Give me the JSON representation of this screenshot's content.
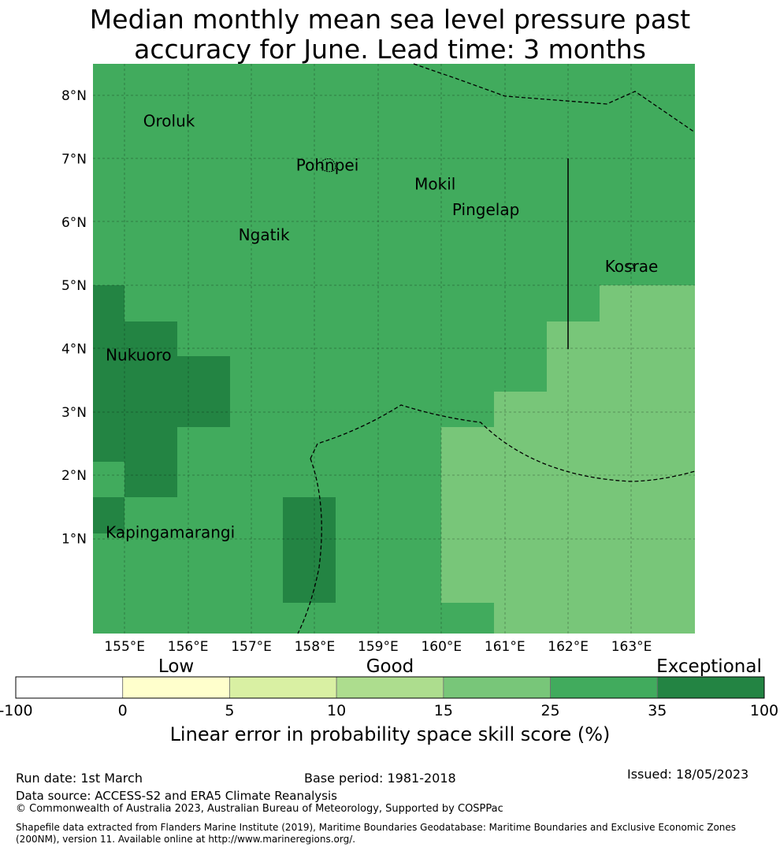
{
  "title_line1": "Median monthly mean sea level pressure past",
  "title_line2": "accuracy for June. Lead time: 3 months",
  "map": {
    "lon_range": [
      154.5,
      164.0
    ],
    "lat_range": [
      -0.5,
      8.5
    ],
    "lon_ticks": [
      "155°E",
      "156°E",
      "157°E",
      "158°E",
      "159°E",
      "160°E",
      "161°E",
      "162°E",
      "163°E"
    ],
    "lat_ticks": [
      "1°N",
      "2°N",
      "3°N",
      "4°N",
      "5°N",
      "6°N",
      "7°N",
      "8°N"
    ],
    "places": [
      {
        "name": "Oroluk",
        "lon": 155.8,
        "lat": 7.6
      },
      {
        "name": "Pohnpei",
        "lon": 158.2,
        "lat": 6.9
      },
      {
        "name": "Mokil",
        "lon": 159.9,
        "lat": 6.6
      },
      {
        "name": "Pingelap",
        "lon": 160.7,
        "lat": 6.2
      },
      {
        "name": "Ngatik",
        "lon": 157.2,
        "lat": 5.8
      },
      {
        "name": "Kosrae",
        "lon": 163.0,
        "lat": 5.3
      },
      {
        "name": "Nukuoro",
        "lon": 154.7,
        "lat": 3.9
      },
      {
        "name": "Kapingamarangi",
        "lon": 154.7,
        "lat": 1.1
      }
    ]
  },
  "colorbar": {
    "categories": [
      {
        "label": "Low",
        "at": 1.5
      },
      {
        "label": "Good",
        "at": 3.5
      },
      {
        "label": "Exceptional",
        "at": 6.5
      }
    ],
    "ticks": [
      "-100",
      "0",
      "5",
      "10",
      "15",
      "25",
      "35",
      "100"
    ],
    "colors": [
      "#ffffff",
      "#ffffcc",
      "#d9f0a3",
      "#addd8e",
      "#78c679",
      "#41ab5d",
      "#238443"
    ],
    "title": "Linear error in probability space skill score (%)"
  },
  "footer": {
    "run_date": "Run date: 1st March",
    "base_period": "Base period: 1981-2018",
    "issued": "Issued: 18/05/2023",
    "data_source": "Data source: ACCESS-S2 and ERA5 Climate Reanalysis",
    "copyright": "© Commonwealth of Australia 2023, Australian Bureau of Meteorology, Supported by COSPPac",
    "shapefile": "Shapefile data extracted from Flanders Marine Institute (2019), Maritime Boundaries Geodatabase: Maritime Boundaries and Exclusive Economic Zones (200NM), version 11. Available online at http://www.marineregions.org/."
  }
}
